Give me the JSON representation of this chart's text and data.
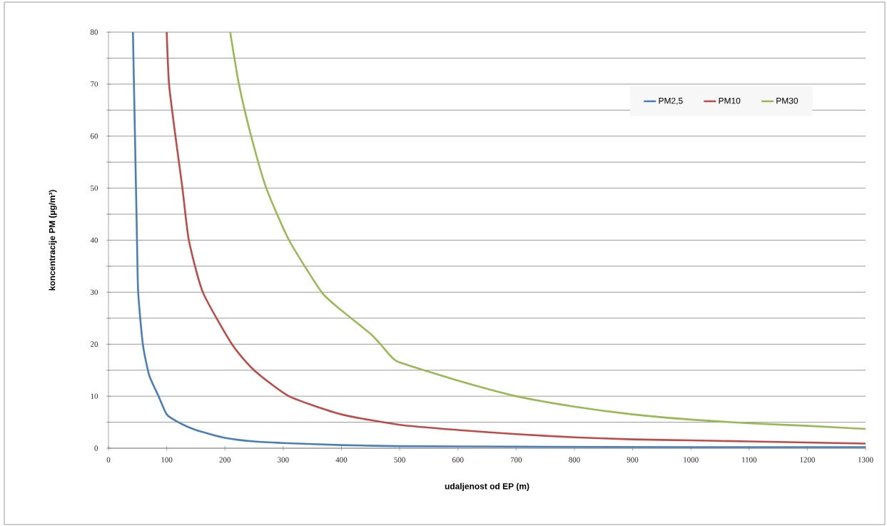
{
  "chart_data": {
    "type": "line",
    "xlabel": "udaljenost od EP  (m)",
    "ylabel": "koncentracije PM  (µg/m³)",
    "xlim": [
      0,
      1300
    ],
    "xticks": [
      0,
      100,
      200,
      300,
      400,
      500,
      600,
      700,
      800,
      900,
      1000,
      1100,
      1200,
      1300
    ],
    "ylim": [
      0,
      80
    ],
    "yticks": [
      0,
      {
        "value": 5,
        "label": null
      },
      10,
      {
        "value": 15,
        "label": null
      },
      20,
      {
        "value": 25,
        "label": null
      },
      30,
      {
        "value": 35,
        "label": null
      },
      40,
      {
        "value": 45,
        "label": null
      },
      50,
      {
        "value": 55,
        "label": null
      },
      60,
      {
        "value": 65,
        "label": null
      },
      70,
      {
        "value": 75,
        "label": null
      },
      80
    ],
    "grid": "y",
    "legend": "top right",
    "marker": "none",
    "line_style": "solid",
    "series": [
      {
        "name": "PM2,5",
        "color": "#4a7ebb",
        "x": [
          42,
          49,
          51,
          59,
          70,
          86,
          100,
          120,
          150,
          200,
          250,
          300,
          400,
          500,
          700,
          1000,
          1300
        ],
        "values": [
          80,
          40,
          30,
          20,
          14,
          10,
          6.5,
          5,
          3.5,
          2,
          1.3,
          1,
          0.6,
          0.4,
          0.3,
          0.2,
          0.2
        ]
      },
      {
        "name": "PM10",
        "color": "#be4b48",
        "x": [
          100,
          104,
          115,
          127,
          138,
          162,
          212,
          250,
          310,
          400,
          500,
          600,
          700,
          800,
          900,
          1000,
          1100,
          1200,
          1300
        ],
        "values": [
          80,
          70,
          60,
          50,
          40,
          30,
          20,
          15,
          10,
          6.5,
          4.5,
          3.5,
          2.7,
          2.1,
          1.7,
          1.5,
          1.3,
          1.1,
          0.9
        ]
      },
      {
        "name": "PM30",
        "color": "#98b954",
        "x": [
          209,
          224,
          245,
          271,
          310,
          366,
          400,
          450,
          467,
          484,
          500,
          600,
          700,
          800,
          900,
          1000,
          1100,
          1200,
          1300
        ],
        "values": [
          80,
          70,
          60,
          50,
          40,
          30,
          26.5,
          22,
          20,
          17.8,
          16.5,
          13,
          10,
          8,
          6.5,
          5.5,
          4.8,
          4.3,
          3.7
        ]
      }
    ]
  }
}
